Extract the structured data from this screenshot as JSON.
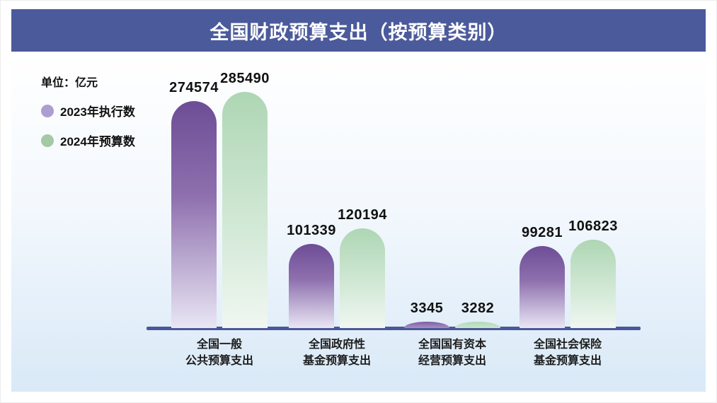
{
  "page": {
    "title": "全国财政预算支出（按预算类别）"
  },
  "legend": {
    "unit_label": "单位：亿元",
    "items": [
      {
        "label": "2023年执行数",
        "color": "#ab9ed0"
      },
      {
        "label": "2024年预算数",
        "color": "#a5c9a5"
      }
    ]
  },
  "chart_data": {
    "type": "bar",
    "title": "全国财政预算支出（按预算类别）",
    "unit": "亿元",
    "categories": [
      [
        "全国一般",
        "公共预算支出"
      ],
      [
        "全国政府性",
        "基金预算支出"
      ],
      [
        "全国国有资本",
        "经营预算支出"
      ],
      [
        "全国社会保险",
        "基金预算支出"
      ]
    ],
    "series": [
      {
        "name": "2023年执行数",
        "values": [
          274574,
          101339,
          3345,
          99281
        ]
      },
      {
        "name": "2024年预算数",
        "values": [
          285490,
          120194,
          3282,
          106823
        ]
      }
    ],
    "ylim": [
      0,
      285490
    ],
    "grid": false,
    "legend_position": "top-left",
    "value_labels": true
  },
  "colors": {
    "header_bg": "#4b5a9b",
    "panel_top": "#ffffff",
    "panel_bottom": "#d9e9f7",
    "axis": "#4a5899",
    "text": "#111111",
    "purple_top": "#6d4d96",
    "purple_mid": "#8e70ae",
    "purple_bottom": "#e9e6f4",
    "green_top": "#aed6b4",
    "green_mid": "#cfe7d3",
    "green_bottom": "#f0f7f1",
    "legend_purple": "#ab9ed0",
    "legend_green": "#a5c9a5"
  }
}
